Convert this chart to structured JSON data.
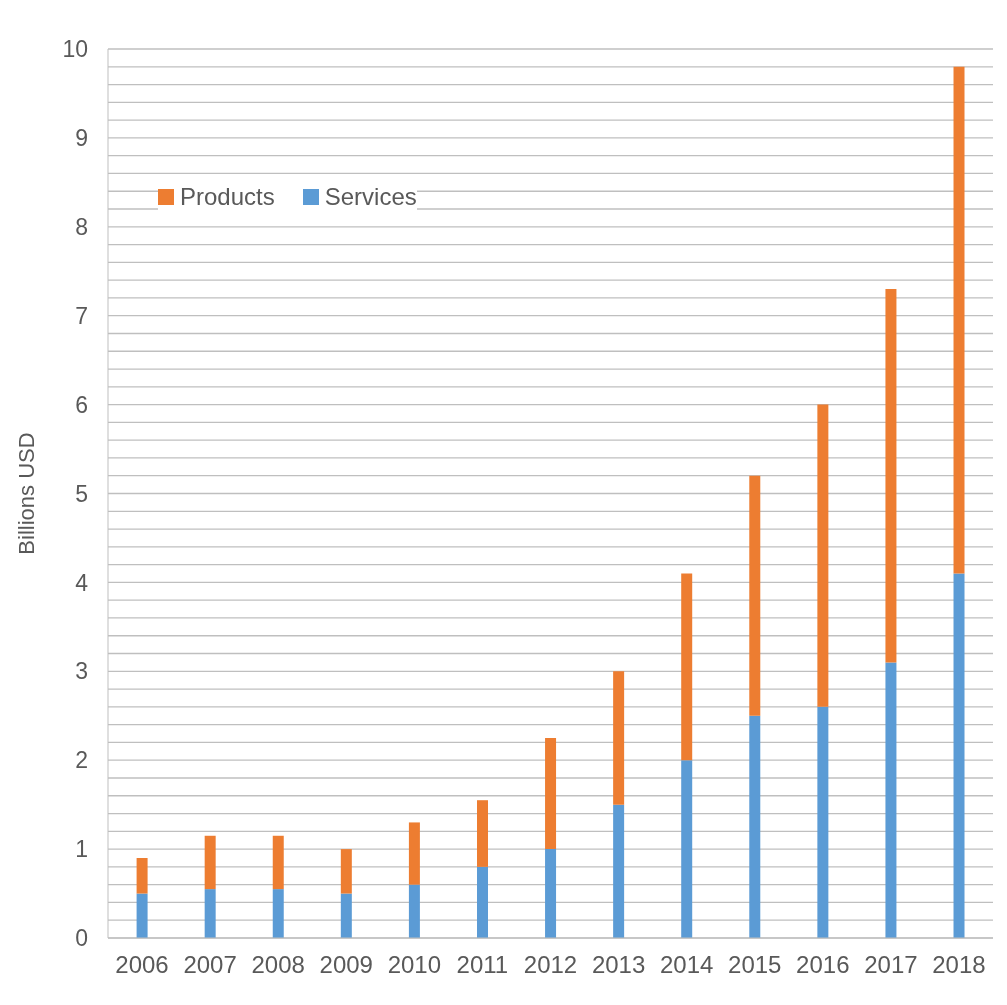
{
  "chart_data": {
    "type": "bar",
    "ylabel": "Billions USD",
    "categories": [
      "2006",
      "2007",
      "2008",
      "2009",
      "2010",
      "2011",
      "2012",
      "2013",
      "2014",
      "2015",
      "2016",
      "2017",
      "2018"
    ],
    "stacked": true,
    "series": [
      {
        "name": "Services",
        "color": "#5b9bd5",
        "values": [
          0.5,
          0.55,
          0.55,
          0.5,
          0.6,
          0.8,
          1.0,
          1.5,
          2.0,
          2.5,
          2.6,
          3.1,
          4.1
        ]
      },
      {
        "name": "Products",
        "color": "#ed7d31",
        "values": [
          0.4,
          0.6,
          0.6,
          0.5,
          0.7,
          0.75,
          1.25,
          1.5,
          2.1,
          2.7,
          3.4,
          4.2,
          5.7
        ]
      }
    ],
    "ylim": [
      0,
      10
    ],
    "yticks": [
      0,
      {
        "value": 0.2,
        "label": null
      },
      {
        "value": 0.4,
        "label": null
      },
      {
        "value": 0.6,
        "label": null
      },
      {
        "value": 0.8,
        "label": null
      },
      1,
      {
        "value": 1.2,
        "label": null
      },
      {
        "value": 1.4,
        "label": null
      },
      {
        "value": 1.6,
        "label": null
      },
      {
        "value": 1.8,
        "label": null
      },
      2,
      {
        "value": 2.2,
        "label": null
      },
      {
        "value": 2.4,
        "label": null
      },
      {
        "value": 2.6,
        "label": null
      },
      {
        "value": 2.8,
        "label": null
      },
      3,
      {
        "value": 3.2,
        "label": null
      },
      {
        "value": 3.4,
        "label": null
      },
      {
        "value": 3.6,
        "label": null
      },
      {
        "value": 3.8,
        "label": null
      },
      4,
      {
        "value": 4.2,
        "label": null
      },
      {
        "value": 4.4,
        "label": null
      },
      {
        "value": 4.6,
        "label": null
      },
      {
        "value": 4.8,
        "label": null
      },
      5,
      {
        "value": 5.2,
        "label": null
      },
      {
        "value": 5.4,
        "label": null
      },
      {
        "value": 5.6,
        "label": null
      },
      {
        "value": 5.8,
        "label": null
      },
      6,
      {
        "value": 6.2,
        "label": null
      },
      {
        "value": 6.4,
        "label": null
      },
      {
        "value": 6.6,
        "label": null
      },
      {
        "value": 6.8,
        "label": null
      },
      7,
      {
        "value": 7.2,
        "label": null
      },
      {
        "value": 7.4,
        "label": null
      },
      {
        "value": 7.6,
        "label": null
      },
      {
        "value": 7.8,
        "label": null
      },
      8,
      {
        "value": 8.2,
        "label": null
      },
      {
        "value": 8.4,
        "label": null
      },
      {
        "value": 8.6,
        "label": null
      },
      {
        "value": 8.8,
        "label": null
      },
      9,
      {
        "value": 9.2,
        "label": null
      },
      {
        "value": 9.4,
        "label": null
      },
      {
        "value": 9.6,
        "label": null
      },
      {
        "value": 9.8,
        "label": null
      },
      10
    ],
    "grid": "y",
    "legend": "top left"
  }
}
